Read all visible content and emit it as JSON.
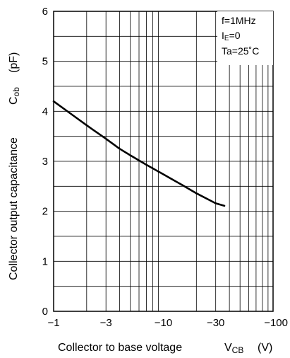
{
  "chart_data": {
    "type": "line",
    "x_scale": "log",
    "x_axis_reversed_sign": true,
    "xlim": [
      -1,
      -100
    ],
    "ylim": [
      0,
      6
    ],
    "grid": true,
    "xlabel": "Collector to base voltage",
    "xlabel_symbol": "V",
    "xlabel_subscript": "CB",
    "xlabel_unit": "(V)",
    "ylabel": "Collector output capacitance",
    "ylabel_symbol": "C",
    "ylabel_subscript": "ob",
    "ylabel_unit": "(pF)",
    "x_ticks": [
      {
        "value": -1,
        "label": "−1"
      },
      {
        "value": -3,
        "label": "−3"
      },
      {
        "value": -10,
        "label": "−10"
      },
      {
        "value": -30,
        "label": "−30"
      },
      {
        "value": -100,
        "label": "−100"
      }
    ],
    "y_ticks": [
      {
        "value": 0,
        "label": "0"
      },
      {
        "value": 1,
        "label": "1"
      },
      {
        "value": 2,
        "label": "2"
      },
      {
        "value": 3,
        "label": "3"
      },
      {
        "value": 4,
        "label": "4"
      },
      {
        "value": 5,
        "label": "5"
      },
      {
        "value": 6,
        "label": "6"
      }
    ],
    "conditions": {
      "line1": "f=1MHz",
      "line2_main": "I",
      "line2_sub": "E",
      "line2_rest": "=0",
      "line3": "Ta=25˚C"
    },
    "series": [
      {
        "x": [
          -1,
          -1.5,
          -2,
          -3,
          -4,
          -5,
          -7,
          -10,
          -15,
          -20,
          -25,
          -30,
          -36
        ],
        "y": [
          4.2,
          3.92,
          3.72,
          3.45,
          3.25,
          3.12,
          2.93,
          2.74,
          2.52,
          2.36,
          2.25,
          2.16,
          2.11
        ]
      }
    ]
  }
}
